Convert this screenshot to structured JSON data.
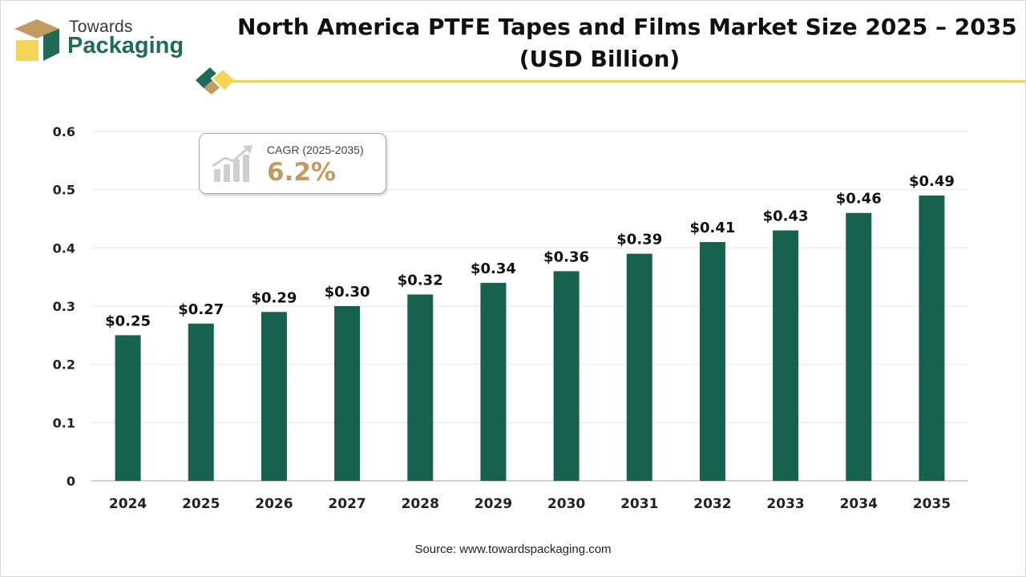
{
  "brand": {
    "line1": "Towards",
    "line2": "Packaging"
  },
  "title": {
    "line1": "North America PTFE Tapes and Films Market Size 2025 – 2035",
    "line2": "(USD Billion)"
  },
  "cagr": {
    "label": "CAGR (2025-2035)",
    "value": "6.2%"
  },
  "source": "Source: www.towardspackaging.com",
  "colors": {
    "bar": "#17614f",
    "brand_green": "#1e6b57",
    "accent_gold": "#f2d25e",
    "cagr_value": "#c49a63"
  },
  "chart_data": {
    "type": "bar",
    "categories": [
      "2024",
      "2025",
      "2026",
      "2027",
      "2028",
      "2029",
      "2030",
      "2031",
      "2032",
      "2033",
      "2034",
      "2035"
    ],
    "values": [
      0.25,
      0.27,
      0.29,
      0.3,
      0.32,
      0.34,
      0.36,
      0.39,
      0.41,
      0.43,
      0.46,
      0.49
    ],
    "data_labels": [
      "$0.25",
      "$0.27",
      "$0.29",
      "$0.30",
      "$0.32",
      "$0.34",
      "$0.36",
      "$0.39",
      "$0.41",
      "$0.43",
      "$0.46",
      "$0.49"
    ],
    "yticks": [
      "0",
      "0.1",
      "0.2",
      "0.3",
      "0.4",
      "0.5",
      "0.6"
    ],
    "ylim": [
      0,
      0.6
    ],
    "xlabel": "",
    "ylabel": "",
    "grid": true,
    "legend": "none"
  }
}
